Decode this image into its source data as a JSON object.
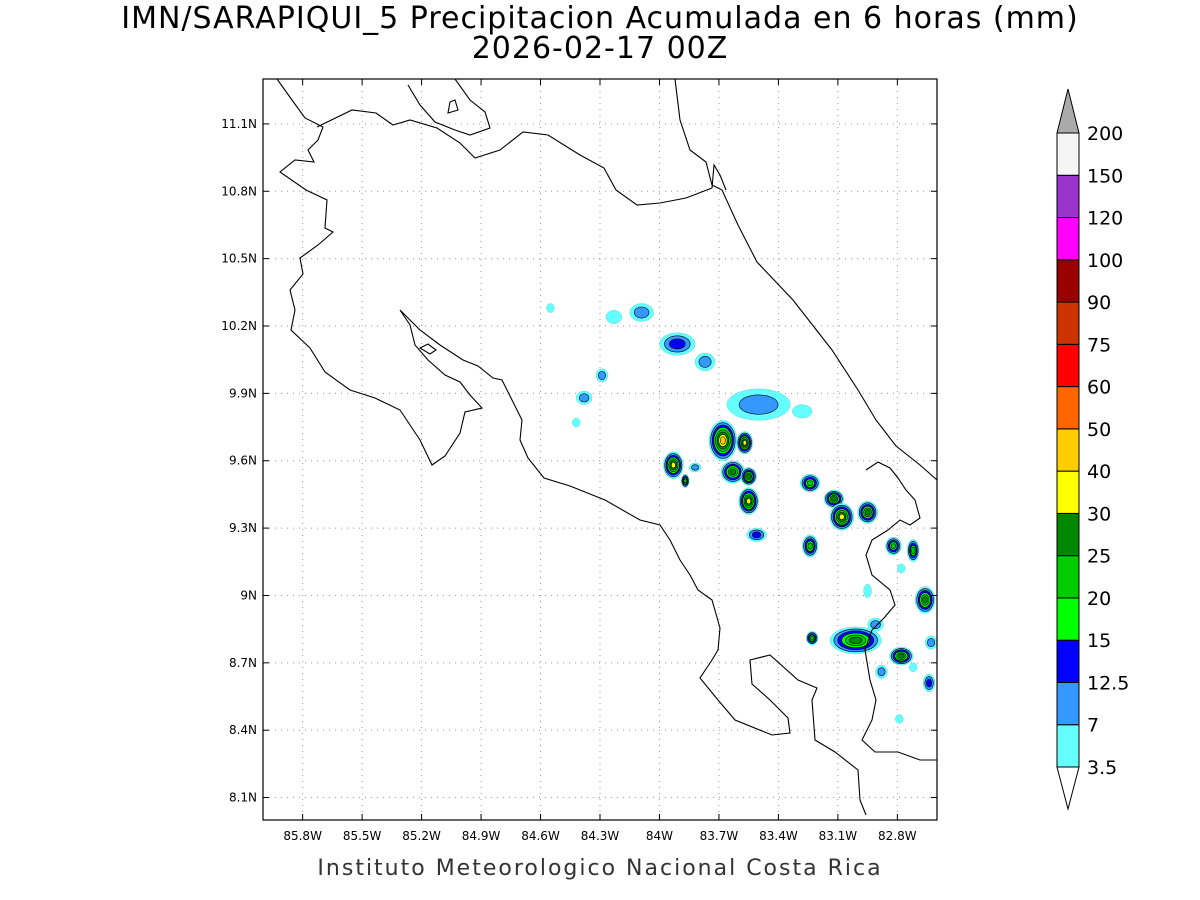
{
  "title": {
    "line1": "IMN/SARAPIQUI_5 Precipitacion Acumulada en 6 horas (mm)",
    "line2": "2026-02-17 00Z"
  },
  "footer": "Instituto Meteorologico Nacional Costa Rica",
  "map": {
    "lon_range": [
      -86.0,
      -82.6
    ],
    "lat_range": [
      8.0,
      11.3
    ],
    "lon_ticks": [
      "85.8W",
      "85.5W",
      "85.2W",
      "84.9W",
      "84.6W",
      "84.3W",
      "84W",
      "83.7W",
      "83.4W",
      "83.1W",
      "82.8W"
    ],
    "lon_values": [
      -85.8,
      -85.5,
      -85.2,
      -84.9,
      -84.6,
      -84.3,
      -84.0,
      -83.7,
      -83.4,
      -83.1,
      -82.8
    ],
    "lat_ticks": [
      "11.1N",
      "10.8N",
      "10.5N",
      "10.2N",
      "9.9N",
      "9.6N",
      "9.3N",
      "9N",
      "8.7N",
      "8.4N",
      "8.1N"
    ],
    "lat_values": [
      11.1,
      10.8,
      10.5,
      10.2,
      9.9,
      9.6,
      9.3,
      9.0,
      8.7,
      8.4,
      8.1
    ],
    "grid": "dotted"
  },
  "colorbar": {
    "labels": [
      "3.5",
      "7",
      "12.5",
      "15",
      "20",
      "25",
      "30",
      "40",
      "50",
      "60",
      "75",
      "90",
      "100",
      "120",
      "150",
      "200"
    ],
    "colors": [
      "#66ffff",
      "#3399ff",
      "#0000ff",
      "#00ff00",
      "#00cc00",
      "#008800",
      "#ffff00",
      "#ffcc00",
      "#ff6600",
      "#ff0000",
      "#cc3300",
      "#990000",
      "#ff00ff",
      "#9933cc",
      "#f5f5f5"
    ],
    "max_arrow_color": "#aaaaaa",
    "min_arrow_color": "#ffffff"
  },
  "precip_cells": [
    {
      "lon": -84.23,
      "lat": 10.24,
      "rx": 0.04,
      "ry": 0.03,
      "level": 0
    },
    {
      "lon": -84.09,
      "lat": 10.26,
      "rx": 0.06,
      "ry": 0.04,
      "level": 1
    },
    {
      "lon": -84.55,
      "lat": 10.28,
      "rx": 0.02,
      "ry": 0.02,
      "level": 0
    },
    {
      "lon": -83.91,
      "lat": 10.12,
      "rx": 0.09,
      "ry": 0.05,
      "level": 2
    },
    {
      "lon": -83.77,
      "lat": 10.04,
      "rx": 0.05,
      "ry": 0.04,
      "level": 1
    },
    {
      "lon": -84.29,
      "lat": 9.98,
      "rx": 0.03,
      "ry": 0.03,
      "level": 1
    },
    {
      "lon": -84.38,
      "lat": 9.88,
      "rx": 0.04,
      "ry": 0.03,
      "level": 1
    },
    {
      "lon": -84.42,
      "lat": 9.77,
      "rx": 0.02,
      "ry": 0.02,
      "level": 0
    },
    {
      "lon": -83.5,
      "lat": 9.85,
      "rx": 0.16,
      "ry": 0.07,
      "level": 1
    },
    {
      "lon": -83.28,
      "lat": 9.82,
      "rx": 0.05,
      "ry": 0.03,
      "level": 0
    },
    {
      "lon": -83.68,
      "lat": 9.69,
      "rx": 0.07,
      "ry": 0.09,
      "level": 7
    },
    {
      "lon": -83.57,
      "lat": 9.68,
      "rx": 0.04,
      "ry": 0.05,
      "level": 6
    },
    {
      "lon": -83.63,
      "lat": 9.55,
      "rx": 0.06,
      "ry": 0.05,
      "level": 5
    },
    {
      "lon": -83.93,
      "lat": 9.58,
      "rx": 0.05,
      "ry": 0.06,
      "level": 6
    },
    {
      "lon": -83.82,
      "lat": 9.57,
      "rx": 0.03,
      "ry": 0.02,
      "level": 1
    },
    {
      "lon": -83.87,
      "lat": 9.51,
      "rx": 0.02,
      "ry": 0.03,
      "level": 4
    },
    {
      "lon": -83.55,
      "lat": 9.53,
      "rx": 0.04,
      "ry": 0.04,
      "level": 5
    },
    {
      "lon": -83.55,
      "lat": 9.42,
      "rx": 0.05,
      "ry": 0.06,
      "level": 6
    },
    {
      "lon": -83.51,
      "lat": 9.27,
      "rx": 0.05,
      "ry": 0.03,
      "level": 2
    },
    {
      "lon": -83.24,
      "lat": 9.5,
      "rx": 0.05,
      "ry": 0.04,
      "level": 4
    },
    {
      "lon": -83.12,
      "lat": 9.43,
      "rx": 0.05,
      "ry": 0.04,
      "level": 5
    },
    {
      "lon": -83.08,
      "lat": 9.35,
      "rx": 0.06,
      "ry": 0.06,
      "level": 6
    },
    {
      "lon": -82.95,
      "lat": 9.37,
      "rx": 0.05,
      "ry": 0.05,
      "level": 5
    },
    {
      "lon": -83.24,
      "lat": 9.22,
      "rx": 0.04,
      "ry": 0.05,
      "level": 4
    },
    {
      "lon": -82.82,
      "lat": 9.22,
      "rx": 0.04,
      "ry": 0.04,
      "level": 4
    },
    {
      "lon": -82.72,
      "lat": 9.2,
      "rx": 0.03,
      "ry": 0.05,
      "level": 4
    },
    {
      "lon": -82.78,
      "lat": 9.12,
      "rx": 0.02,
      "ry": 0.02,
      "level": 0
    },
    {
      "lon": -82.66,
      "lat": 8.98,
      "rx": 0.05,
      "ry": 0.06,
      "level": 5
    },
    {
      "lon": -82.95,
      "lat": 9.02,
      "rx": 0.02,
      "ry": 0.03,
      "level": 0
    },
    {
      "lon": -83.01,
      "lat": 8.8,
      "rx": 0.13,
      "ry": 0.06,
      "level": 5
    },
    {
      "lon": -82.91,
      "lat": 8.87,
      "rx": 0.04,
      "ry": 0.03,
      "level": 1
    },
    {
      "lon": -83.23,
      "lat": 8.81,
      "rx": 0.03,
      "ry": 0.03,
      "level": 4
    },
    {
      "lon": -82.78,
      "lat": 8.73,
      "rx": 0.06,
      "ry": 0.04,
      "level": 5
    },
    {
      "lon": -82.88,
      "lat": 8.66,
      "rx": 0.03,
      "ry": 0.03,
      "level": 1
    },
    {
      "lon": -82.63,
      "lat": 8.79,
      "rx": 0.03,
      "ry": 0.03,
      "level": 1
    },
    {
      "lon": -82.64,
      "lat": 8.61,
      "rx": 0.03,
      "ry": 0.04,
      "level": 2
    },
    {
      "lon": -82.72,
      "lat": 8.68,
      "rx": 0.02,
      "ry": 0.02,
      "level": 0
    },
    {
      "lon": -82.79,
      "lat": 8.45,
      "rx": 0.02,
      "ry": 0.02,
      "level": 0
    }
  ]
}
